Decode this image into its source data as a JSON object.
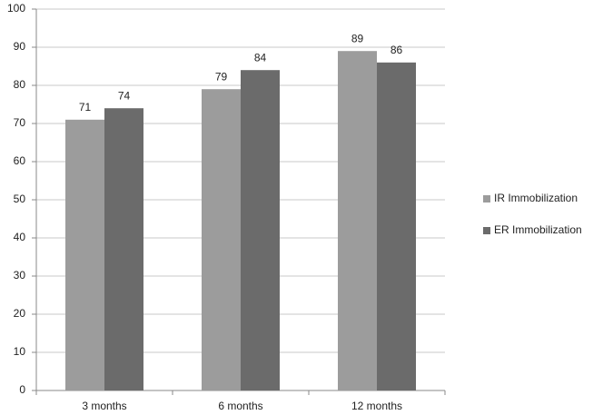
{
  "chart_data": {
    "type": "bar",
    "categories": [
      "3 months",
      "6 months",
      "12 months"
    ],
    "series": [
      {
        "name": "IR Immobilization",
        "color": "#9c9c9c",
        "values": [
          71,
          79,
          89
        ]
      },
      {
        "name": "ER Immobilization",
        "color": "#6b6b6b",
        "values": [
          74,
          84,
          86
        ]
      }
    ],
    "ylim": [
      0,
      100
    ],
    "yticks": [
      0,
      10,
      20,
      30,
      40,
      50,
      60,
      70,
      80,
      90,
      100
    ],
    "grid": true,
    "legend": "right"
  }
}
